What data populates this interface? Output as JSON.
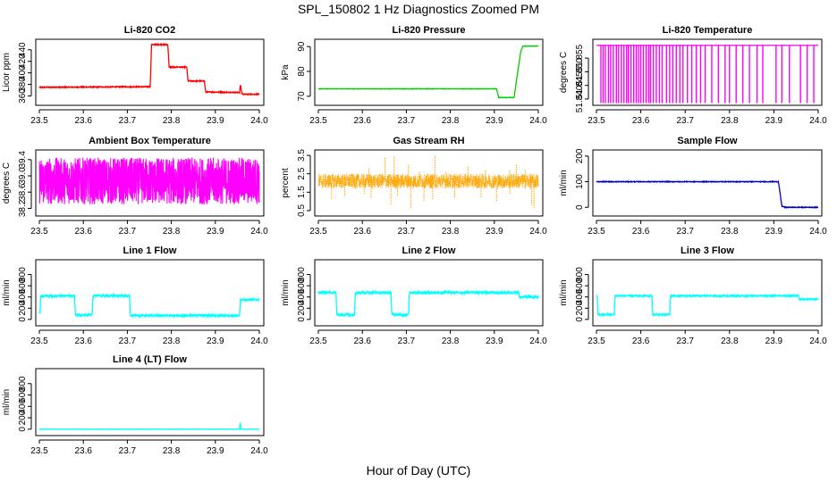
{
  "figure": {
    "title": "SPL_150802  1 Hz Diagnostics Zoomed PM",
    "xlabel": "Hour of Day (UTC)"
  },
  "chart_data": [
    {
      "type": "line",
      "title": "Li-820 CO2",
      "ylabel": "Licor ppm",
      "color": "#ff0000",
      "xlim": [
        23.5,
        24.0
      ],
      "xticks": [
        "23.5",
        "23.6",
        "23.7",
        "23.8",
        "23.9",
        "24.0"
      ],
      "yticks": [
        360,
        380,
        400,
        420,
        440
      ],
      "ylim": [
        350,
        452
      ],
      "noise": 0.8,
      "series": [
        {
          "x": [
            23.5,
            23.752,
            23.755,
            23.792,
            23.795,
            23.835,
            23.838,
            23.875,
            23.878,
            23.955,
            23.957,
            23.96,
            23.963,
            24.0
          ],
          "y": [
            375,
            376,
            449,
            449,
            410,
            410,
            386,
            386,
            367,
            366,
            380,
            365,
            363,
            363
          ]
        }
      ]
    },
    {
      "type": "line",
      "title": "Li-820 Pressure",
      "ylabel": "kPa",
      "color": "#00cc00",
      "xlim": [
        23.5,
        24.0
      ],
      "xticks": [
        "23.5",
        "23.6",
        "23.7",
        "23.8",
        "23.9",
        "24.0"
      ],
      "yticks": [
        70,
        80,
        90
      ],
      "ylim": [
        67.8,
        91.5
      ],
      "noise": 0.08,
      "series": [
        {
          "x": [
            23.5,
            23.905,
            23.91,
            23.945,
            23.95,
            23.96,
            23.965,
            24.0
          ],
          "y": [
            73,
            73,
            69.5,
            69.5,
            76,
            88,
            90.2,
            90.2
          ]
        }
      ]
    },
    {
      "type": "line",
      "title": "Li-820 Temperature",
      "ylabel": "degrees C",
      "color": "#ff00ff",
      "xlim": [
        23.5,
        24.0
      ],
      "xticks": [
        "23.5",
        "23.6",
        "23.7",
        "23.8",
        "23.9",
        "24.0"
      ],
      "yticks": [
        "51.840",
        "51.845",
        "51.850",
        "51.855"
      ],
      "ylim": [
        51.839,
        51.8606
      ],
      "baseline": 51.8597,
      "low": 51.8385,
      "spikes": [
        23.51,
        23.515,
        23.52,
        23.527,
        23.532,
        23.538,
        23.545,
        23.55,
        23.556,
        23.562,
        23.568,
        23.572,
        23.578,
        23.584,
        23.59,
        23.595,
        23.6,
        23.606,
        23.612,
        23.618,
        23.622,
        23.628,
        23.635,
        23.642,
        23.648,
        23.658,
        23.665,
        23.672,
        23.68,
        23.688,
        23.695,
        23.705,
        23.715,
        23.725,
        23.735,
        23.745,
        23.76,
        23.775,
        23.79,
        23.8,
        23.815,
        23.83,
        23.845,
        23.862,
        23.875,
        23.905,
        23.918,
        23.935,
        23.96,
        23.975,
        23.99
      ]
    },
    {
      "type": "line",
      "title": "Ambient Box Temperature",
      "ylabel": "degrees C",
      "color": "#ff00ff",
      "xlim": [
        23.5,
        24.0
      ],
      "xticks": [
        "23.5",
        "23.6",
        "23.7",
        "23.8",
        "23.9",
        "24.0"
      ],
      "yticks": [
        "38.2",
        "38.6",
        "39.0",
        "39.4"
      ],
      "ylim": [
        38.1,
        39.55
      ],
      "band": [
        38.3,
        39.45
      ],
      "center": 38.8
    },
    {
      "type": "line",
      "title": "Gas Stream RH",
      "ylabel": "percent",
      "color": "#ffa500",
      "xlim": [
        23.5,
        24.0
      ],
      "xticks": [
        "23.5",
        "23.6",
        "23.7",
        "23.8",
        "23.9",
        "24.0"
      ],
      "yticks": [
        "0.5",
        "1.5",
        "2.5",
        "3.5"
      ],
      "ylim": [
        0.4,
        3.6
      ],
      "band": [
        1.7,
        2.5
      ],
      "center": 2.05,
      "spikes_up": [
        [
          23.615,
          2.8
        ],
        [
          23.652,
          3.4
        ],
        [
          23.672,
          3.45
        ],
        [
          23.705,
          3.0
        ],
        [
          23.765,
          3.5
        ],
        [
          23.84,
          2.9
        ],
        [
          23.88,
          2.7
        ],
        [
          23.935,
          2.7
        ],
        [
          23.95,
          3.0
        ],
        [
          23.97,
          2.7
        ],
        [
          23.73,
          2.6
        ],
        [
          23.79,
          2.6
        ]
      ],
      "spikes_down": [
        [
          23.53,
          1.1
        ],
        [
          23.56,
          1.3
        ],
        [
          23.605,
          1.4
        ],
        [
          23.62,
          1.2
        ],
        [
          23.665,
          0.8
        ],
        [
          23.68,
          1.3
        ],
        [
          23.71,
          0.6
        ],
        [
          23.74,
          1.0
        ],
        [
          23.76,
          1.1
        ],
        [
          23.81,
          1.2
        ],
        [
          23.87,
          1.2
        ],
        [
          23.905,
          1.0
        ],
        [
          23.935,
          1.4
        ],
        [
          23.985,
          0.8
        ],
        [
          23.99,
          0.6
        ]
      ]
    },
    {
      "type": "line",
      "title": "Sample Flow",
      "ylabel": "ml/min",
      "color": "#0000cc",
      "xlim": [
        23.5,
        24.0
      ],
      "xticks": [
        "23.5",
        "23.6",
        "23.7",
        "23.8",
        "23.9",
        "24.0"
      ],
      "yticks": [
        0,
        100,
        200
      ],
      "ylim": [
        -20,
        210
      ],
      "noise": 1.2,
      "series": [
        {
          "x": [
            23.5,
            23.91,
            23.912,
            23.918,
            23.925,
            24.0
          ],
          "y": [
            100,
            100,
            80,
            5,
            0,
            0
          ]
        }
      ]
    },
    {
      "type": "line",
      "title": "Line 1 Flow",
      "ylabel": "ml/min",
      "color": "#00ffff",
      "xlim": [
        23.5,
        24.0
      ],
      "xticks": [
        "23.5",
        "23.6",
        "23.7",
        "23.8",
        "23.9",
        "24.0"
      ],
      "yticks": [
        0,
        200,
        400,
        600,
        800
      ],
      "ylim": [
        -50,
        1000
      ],
      "noise": 18,
      "series": [
        {
          "x": [
            23.5,
            23.502,
            23.503,
            23.58,
            23.582,
            23.62,
            23.622,
            23.705,
            23.707,
            23.955,
            23.957,
            24.0
          ],
          "y": [
            120,
            120,
            420,
            420,
            80,
            80,
            420,
            420,
            70,
            70,
            350,
            350
          ]
        }
      ]
    },
    {
      "type": "line",
      "title": "Line 2 Flow",
      "ylabel": "ml/min",
      "color": "#00ffff",
      "xlim": [
        23.5,
        24.0
      ],
      "xticks": [
        "23.5",
        "23.6",
        "23.7",
        "23.8",
        "23.9",
        "24.0"
      ],
      "yticks": [
        0,
        200,
        400,
        600,
        800
      ],
      "ylim": [
        -50,
        1000
      ],
      "noise": 22,
      "series": [
        {
          "x": [
            23.5,
            23.54,
            23.542,
            23.582,
            23.584,
            23.665,
            23.667,
            23.705,
            23.707,
            23.955,
            23.957,
            24.0
          ],
          "y": [
            480,
            480,
            85,
            85,
            480,
            480,
            85,
            85,
            480,
            480,
            400,
            400
          ]
        }
      ]
    },
    {
      "type": "line",
      "title": "Line 3 Flow",
      "ylabel": "ml/min",
      "color": "#00ffff",
      "xlim": [
        23.5,
        24.0
      ],
      "xticks": [
        "23.5",
        "23.6",
        "23.7",
        "23.8",
        "23.9",
        "24.0"
      ],
      "yticks": [
        0,
        200,
        400,
        600,
        800
      ],
      "ylim": [
        -50,
        1000
      ],
      "noise": 12,
      "series": [
        {
          "x": [
            23.5,
            23.502,
            23.503,
            23.54,
            23.542,
            23.625,
            23.627,
            23.665,
            23.667,
            23.955,
            23.957,
            24.0
          ],
          "y": [
            420,
            420,
            85,
            85,
            420,
            420,
            85,
            85,
            420,
            420,
            360,
            360
          ]
        }
      ]
    },
    {
      "type": "line",
      "title": "Line 4 (LT) Flow",
      "ylabel": "ml/min",
      "color": "#00ffff",
      "xlim": [
        23.5,
        24.0
      ],
      "xticks": [
        "23.5",
        "23.6",
        "23.7",
        "23.8",
        "23.9",
        "24.0"
      ],
      "yticks": [
        0,
        200,
        400,
        600,
        800
      ],
      "ylim": [
        -50,
        1000
      ],
      "noise": 2,
      "series": [
        {
          "x": [
            23.5,
            23.955,
            23.956,
            23.957,
            23.958,
            24.0
          ],
          "y": [
            0,
            0,
            100,
            100,
            0,
            0
          ]
        }
      ]
    }
  ]
}
